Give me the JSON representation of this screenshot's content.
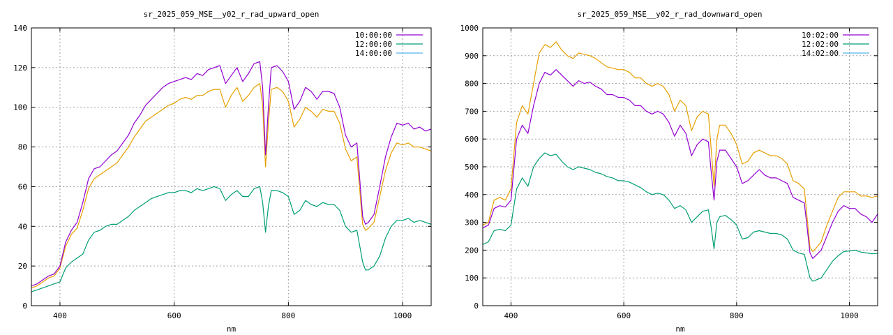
{
  "chart_data": [
    {
      "type": "line",
      "title": "sr_2025_059_MSE__y02_r_rad_upward_open",
      "xlabel": "nm",
      "ylabel": "",
      "xlim": [
        350,
        1050
      ],
      "ylim": [
        0,
        140
      ],
      "xticks": [
        400,
        600,
        800,
        1000
      ],
      "yticks": [
        0,
        20,
        40,
        60,
        80,
        100,
        120,
        140
      ],
      "grid": true,
      "legend_position": "top-right",
      "series": [
        {
          "name": "10:00:00",
          "color": "#9400d3",
          "x": [
            350,
            360,
            370,
            380,
            390,
            400,
            410,
            420,
            430,
            440,
            450,
            460,
            470,
            480,
            490,
            500,
            510,
            520,
            530,
            540,
            550,
            560,
            570,
            580,
            590,
            600,
            610,
            620,
            630,
            640,
            650,
            660,
            670,
            680,
            690,
            700,
            710,
            720,
            730,
            740,
            750,
            755,
            760,
            765,
            770,
            780,
            790,
            800,
            810,
            820,
            830,
            840,
            850,
            860,
            870,
            880,
            890,
            900,
            910,
            920,
            930,
            935,
            940,
            950,
            960,
            970,
            980,
            990,
            1000,
            1010,
            1020,
            1030,
            1040,
            1050
          ],
          "y": [
            10,
            11,
            13,
            15,
            16,
            20,
            32,
            38,
            42,
            52,
            64,
            69,
            70,
            73,
            76,
            78,
            82,
            86,
            92,
            96,
            101,
            104,
            107,
            110,
            112,
            113,
            114,
            115,
            114,
            117,
            116,
            119,
            120,
            121,
            112,
            116,
            120,
            113,
            117,
            122,
            123,
            110,
            76,
            100,
            120,
            121,
            118,
            113,
            99,
            103,
            110,
            108,
            104,
            108,
            108,
            107,
            100,
            86,
            80,
            82,
            45,
            41,
            42,
            46,
            60,
            75,
            85,
            92,
            91,
            92,
            89,
            90,
            88,
            89
          ]
        },
        {
          "name": "12:00:00",
          "color": "#009e73",
          "x": [
            350,
            360,
            370,
            380,
            390,
            400,
            410,
            420,
            430,
            440,
            450,
            460,
            470,
            480,
            490,
            500,
            510,
            520,
            530,
            540,
            550,
            560,
            570,
            580,
            590,
            600,
            610,
            620,
            630,
            640,
            650,
            660,
            670,
            680,
            690,
            700,
            710,
            720,
            730,
            740,
            750,
            755,
            760,
            765,
            770,
            780,
            790,
            800,
            810,
            820,
            830,
            840,
            850,
            860,
            870,
            880,
            890,
            900,
            910,
            920,
            930,
            935,
            940,
            950,
            960,
            970,
            980,
            990,
            1000,
            1010,
            1020,
            1030,
            1040,
            1050
          ],
          "y": [
            7,
            8,
            9,
            10,
            11,
            12,
            19,
            22,
            24,
            26,
            33,
            37,
            38,
            40,
            41,
            41,
            43,
            45,
            48,
            50,
            52,
            54,
            55,
            56,
            57,
            57,
            58,
            58,
            57,
            59,
            58,
            59,
            60,
            59,
            53,
            56,
            58,
            55,
            55,
            59,
            60,
            52,
            37,
            50,
            58,
            58,
            57,
            55,
            46,
            48,
            53,
            51,
            50,
            52,
            51,
            51,
            48,
            40,
            37,
            38,
            22,
            18,
            18,
            20,
            25,
            34,
            40,
            43,
            43,
            44,
            42,
            43,
            42,
            41
          ]
        },
        {
          "name": "14:00:00",
          "color": "#56b4e9",
          "x": [
            350,
            400,
            500,
            600,
            700,
            800,
            900,
            1000,
            1050
          ],
          "y": [
            null,
            null,
            null,
            null,
            null,
            null,
            null,
            null,
            null
          ]
        },
        {
          "name": "",
          "color": "#e69f00",
          "x": [
            350,
            360,
            370,
            380,
            390,
            400,
            410,
            420,
            430,
            440,
            450,
            460,
            470,
            480,
            490,
            500,
            510,
            520,
            530,
            540,
            550,
            560,
            570,
            580,
            590,
            600,
            610,
            620,
            630,
            640,
            650,
            660,
            670,
            680,
            690,
            700,
            710,
            720,
            730,
            740,
            750,
            755,
            760,
            765,
            770,
            780,
            790,
            800,
            810,
            820,
            830,
            840,
            850,
            860,
            870,
            880,
            890,
            900,
            910,
            920,
            930,
            935,
            940,
            950,
            960,
            970,
            980,
            990,
            1000,
            1010,
            1020,
            1030,
            1040,
            1050
          ],
          "y": [
            9,
            10,
            12,
            14,
            15,
            19,
            30,
            36,
            39,
            48,
            59,
            64,
            66,
            68,
            70,
            72,
            76,
            80,
            85,
            89,
            93,
            95,
            97,
            99,
            101,
            102,
            104,
            105,
            104,
            106,
            106,
            108,
            109,
            109,
            100,
            106,
            110,
            103,
            106,
            110,
            112,
            101,
            70,
            92,
            109,
            110,
            108,
            103,
            90,
            94,
            100,
            98,
            95,
            99,
            98,
            98,
            92,
            79,
            73,
            75,
            41,
            38,
            39,
            42,
            55,
            68,
            77,
            82,
            81,
            82,
            80,
            80,
            79,
            78
          ]
        }
      ]
    },
    {
      "type": "line",
      "title": "sr_2025_059_MSE__y02_r_rad_downward_open",
      "xlabel": "nm",
      "ylabel": "",
      "xlim": [
        350,
        1050
      ],
      "ylim": [
        0,
        1000
      ],
      "xticks": [
        400,
        600,
        800,
        1000
      ],
      "yticks": [
        0,
        100,
        200,
        300,
        400,
        500,
        600,
        700,
        800,
        900,
        1000
      ],
      "grid": true,
      "legend_position": "top-right",
      "series": [
        {
          "name": "10:02:00",
          "color": "#9400d3",
          "x": [
            350,
            360,
            370,
            380,
            390,
            400,
            410,
            420,
            430,
            440,
            450,
            460,
            470,
            480,
            490,
            500,
            510,
            520,
            530,
            540,
            550,
            560,
            570,
            580,
            590,
            600,
            610,
            620,
            630,
            640,
            650,
            660,
            670,
            680,
            690,
            700,
            710,
            720,
            730,
            740,
            750,
            755,
            760,
            765,
            770,
            780,
            790,
            800,
            810,
            820,
            830,
            840,
            850,
            860,
            870,
            880,
            890,
            900,
            910,
            920,
            930,
            935,
            940,
            950,
            960,
            970,
            980,
            990,
            1000,
            1010,
            1020,
            1030,
            1040,
            1050
          ],
          "y": [
            280,
            290,
            350,
            360,
            355,
            380,
            600,
            650,
            620,
            720,
            800,
            840,
            830,
            850,
            830,
            810,
            790,
            810,
            800,
            805,
            790,
            780,
            760,
            760,
            750,
            750,
            740,
            720,
            720,
            700,
            690,
            700,
            690,
            660,
            610,
            650,
            620,
            540,
            580,
            600,
            590,
            480,
            380,
            520,
            560,
            560,
            530,
            500,
            440,
            450,
            470,
            490,
            470,
            460,
            460,
            450,
            440,
            390,
            380,
            370,
            190,
            170,
            180,
            200,
            250,
            300,
            340,
            360,
            350,
            350,
            330,
            320,
            300,
            330
          ]
        },
        {
          "name": "12:02:00",
          "color": "#009e73",
          "x": [
            350,
            360,
            370,
            380,
            390,
            400,
            410,
            420,
            430,
            440,
            450,
            460,
            470,
            480,
            490,
            500,
            510,
            520,
            530,
            540,
            550,
            560,
            570,
            580,
            590,
            600,
            610,
            620,
            630,
            640,
            650,
            660,
            670,
            680,
            690,
            700,
            710,
            720,
            730,
            740,
            750,
            755,
            760,
            765,
            770,
            780,
            790,
            800,
            810,
            820,
            830,
            840,
            850,
            860,
            870,
            880,
            890,
            900,
            910,
            920,
            930,
            935,
            940,
            950,
            960,
            970,
            980,
            990,
            1000,
            1010,
            1020,
            1030,
            1040,
            1050
          ],
          "y": [
            220,
            230,
            270,
            275,
            270,
            290,
            420,
            460,
            430,
            500,
            530,
            550,
            540,
            545,
            520,
            500,
            490,
            500,
            495,
            490,
            480,
            475,
            465,
            460,
            450,
            450,
            445,
            435,
            425,
            410,
            400,
            405,
            400,
            380,
            350,
            360,
            345,
            300,
            320,
            340,
            345,
            280,
            205,
            300,
            320,
            325,
            310,
            290,
            240,
            245,
            265,
            270,
            265,
            260,
            260,
            255,
            240,
            200,
            190,
            185,
            100,
            88,
            92,
            100,
            130,
            160,
            180,
            195,
            197,
            200,
            193,
            190,
            187,
            188
          ]
        },
        {
          "name": "14:02:00",
          "color": "#56b4e9",
          "x": [
            350,
            400,
            500,
            600,
            700,
            800,
            900,
            1000,
            1050
          ],
          "y": [
            null,
            null,
            null,
            null,
            null,
            null,
            null,
            null,
            null
          ]
        },
        {
          "name": "",
          "color": "#e69f00",
          "x": [
            350,
            360,
            370,
            380,
            390,
            400,
            410,
            420,
            430,
            440,
            450,
            460,
            470,
            480,
            490,
            500,
            510,
            520,
            530,
            540,
            550,
            560,
            570,
            580,
            590,
            600,
            610,
            620,
            630,
            640,
            650,
            660,
            670,
            680,
            690,
            700,
            710,
            720,
            730,
            740,
            750,
            755,
            760,
            765,
            770,
            780,
            790,
            800,
            810,
            820,
            830,
            840,
            850,
            860,
            870,
            880,
            890,
            900,
            910,
            920,
            930,
            935,
            940,
            950,
            960,
            970,
            980,
            990,
            1000,
            1010,
            1020,
            1030,
            1040,
            1050
          ],
          "y": [
            290,
            300,
            380,
            390,
            380,
            420,
            660,
            720,
            690,
            800,
            910,
            940,
            930,
            950,
            920,
            900,
            890,
            910,
            905,
            900,
            890,
            875,
            860,
            855,
            850,
            850,
            840,
            820,
            820,
            800,
            790,
            800,
            790,
            760,
            700,
            740,
            720,
            630,
            680,
            700,
            690,
            560,
            430,
            600,
            650,
            650,
            620,
            580,
            510,
            520,
            550,
            560,
            550,
            540,
            540,
            530,
            510,
            450,
            440,
            420,
            210,
            195,
            205,
            230,
            290,
            340,
            390,
            410,
            410,
            410,
            395,
            395,
            390,
            395
          ]
        }
      ]
    }
  ]
}
